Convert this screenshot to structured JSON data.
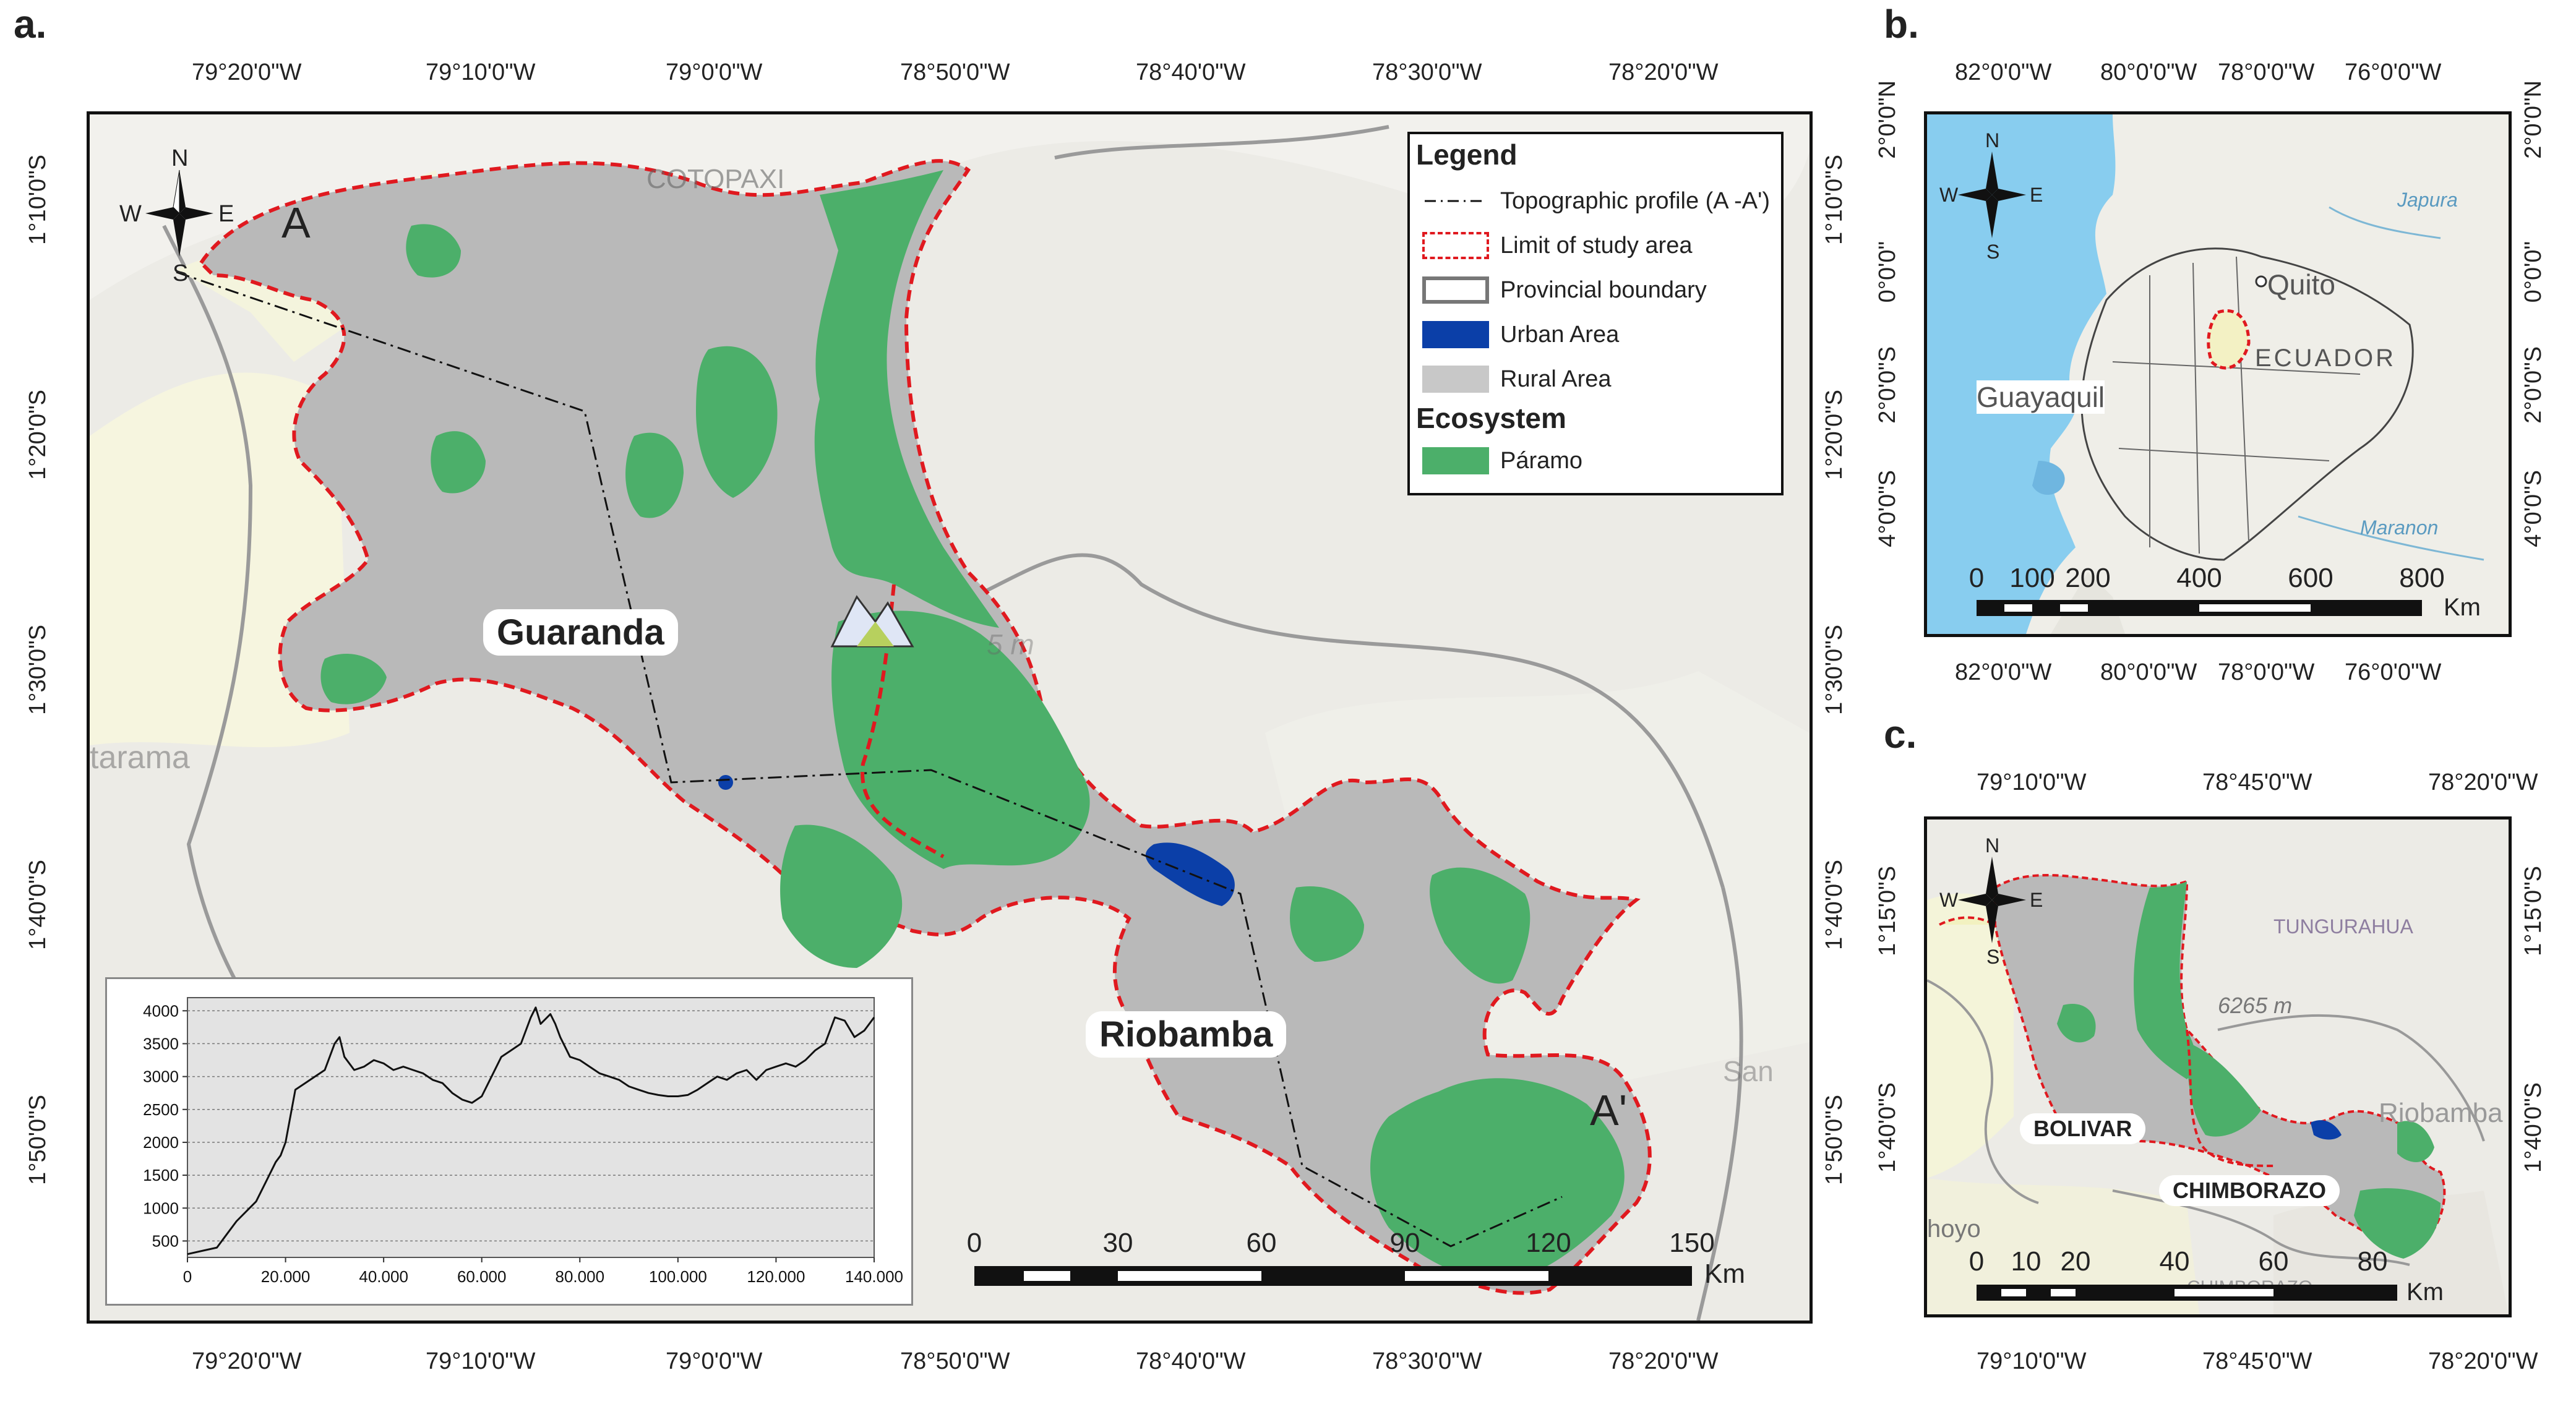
{
  "panel_a": {
    "letter": "a.",
    "top_ticks": [
      "79°20'0\"W",
      "79°10'0\"W",
      "79°0'0\"W",
      "78°50'0\"W",
      "78°40'0\"W",
      "78°30'0\"W",
      "78°20'0\"W"
    ],
    "bottom_ticks": [
      "79°20'0\"W",
      "79°10'0\"W",
      "79°0'0\"W",
      "78°50'0\"W",
      "78°40'0\"W",
      "78°30'0\"W",
      "78°20'0\"W"
    ],
    "left_ticks": [
      "1°10'0\"S",
      "1°20'0\"S",
      "1°30'0\"S",
      "1°40'0\"S",
      "1°50'0\"S"
    ],
    "right_ticks": [
      "1°10'0\"S",
      "1°20'0\"S",
      "1°30'0\"S",
      "1°40'0\"S",
      "1°50'0\"S"
    ],
    "compass": {
      "n": "N",
      "s": "S",
      "e": "E",
      "w": "W"
    },
    "point_a": "A",
    "point_a_prime": "A'",
    "city_guaranda": "Guaranda",
    "city_riobamba": "Riobamba",
    "basemap_labels": {
      "cotopaxi": "COTOPAXI",
      "tarama": "tarama",
      "elevation": "5 m",
      "san": "San"
    },
    "legend": {
      "title": "Legend",
      "items": [
        {
          "label": "Topographic profile (A -A')",
          "icon": "dash-dot-line"
        },
        {
          "label": "Limit of study area",
          "icon": "red-dashed-box"
        },
        {
          "label": "Provincial boundary",
          "icon": "grey-outline-box"
        },
        {
          "label": "Urban Area",
          "icon": "blue-fill",
          "color": "#0b3fa8"
        },
        {
          "label": "Rural Area",
          "icon": "grey-fill",
          "color": "#c8c8c8"
        }
      ],
      "ecosystem_title": "Ecosystem",
      "ecosystem_items": [
        {
          "label": "Páramo",
          "icon": "green-fill",
          "color": "#4caf6a"
        }
      ]
    },
    "scale": {
      "labels": [
        "0",
        "30",
        "60",
        "90",
        "120",
        "150"
      ],
      "unit": "Km"
    }
  },
  "chart_data": {
    "type": "line",
    "title": "",
    "xlabel": "",
    "ylabel": "",
    "xlim": [
      0,
      140000
    ],
    "ylim": [
      250,
      4200
    ],
    "x_tick_labels": [
      "0",
      "20.000",
      "40.000",
      "60.000",
      "80.000",
      "100.000",
      "120.000",
      "140.000"
    ],
    "y_tick_labels": [
      "500",
      "1000",
      "1500",
      "2000",
      "2500",
      "3000",
      "3500",
      "4000"
    ],
    "x_ticks": [
      0,
      20000,
      40000,
      60000,
      80000,
      100000,
      120000,
      140000
    ],
    "y_ticks": [
      500,
      1000,
      1500,
      2000,
      2500,
      3000,
      3500,
      4000
    ],
    "grid": true,
    "series": [
      {
        "x": [
          0,
          3000,
          6000,
          8000,
          10000,
          12000,
          14000,
          16000,
          18000,
          19000,
          20000,
          22000,
          24000,
          26000,
          28000,
          30000,
          31000,
          32000,
          34000,
          36000,
          38000,
          40000,
          42000,
          44000,
          46000,
          48000,
          50000,
          52000,
          54000,
          56000,
          58000,
          60000,
          62000,
          64000,
          66000,
          68000,
          70000,
          71000,
          72000,
          74000,
          75000,
          76000,
          78000,
          80000,
          82000,
          84000,
          86000,
          88000,
          90000,
          92000,
          94000,
          96000,
          98000,
          100000,
          102000,
          104000,
          106000,
          108000,
          110000,
          112000,
          114000,
          116000,
          118000,
          120000,
          122000,
          124000,
          126000,
          128000,
          130000,
          132000,
          134000,
          136000,
          138000,
          140000
        ],
        "y": [
          300,
          350,
          400,
          600,
          800,
          950,
          1100,
          1400,
          1700,
          1800,
          2000,
          2800,
          2900,
          3000,
          3100,
          3500,
          3600,
          3300,
          3100,
          3150,
          3250,
          3200,
          3100,
          3150,
          3100,
          3050,
          2950,
          2900,
          2750,
          2650,
          2600,
          2700,
          3000,
          3300,
          3400,
          3500,
          3900,
          4050,
          3800,
          3950,
          3800,
          3600,
          3300,
          3250,
          3150,
          3050,
          3000,
          2950,
          2850,
          2800,
          2750,
          2720,
          2700,
          2700,
          2720,
          2800,
          2900,
          3000,
          2950,
          3050,
          3100,
          2950,
          3100,
          3150,
          3200,
          3150,
          3250,
          3400,
          3500,
          3900,
          3850,
          3600,
          3700,
          3900
        ]
      }
    ]
  },
  "panel_b": {
    "letter": "b.",
    "top_ticks": [
      "82°0'0\"W",
      "80°0'0\"W",
      "78°0'0\"W",
      "76°0'0\"W"
    ],
    "bottom_ticks": [
      "82°0'0\"W",
      "80°0'0\"W",
      "78°0'0\"W",
      "76°0'0\"W"
    ],
    "left_ticks": [
      "2°0'0\"N",
      "0°0'0\"",
      "2°0'0\"S",
      "4°0'0\"S"
    ],
    "right_ticks": [
      "2°0'0\"N",
      "0°0'0\"",
      "2°0'0\"S",
      "4°0'0\"S"
    ],
    "compass": {
      "n": "N",
      "s": "S",
      "e": "E",
      "w": "W"
    },
    "labels": {
      "quito": "Quito",
      "ecuador": "ECUADOR",
      "guayaquil": "Guayaquil",
      "japura": "Japura",
      "maranon": "Maranon"
    },
    "scale": {
      "labels": [
        "0",
        "100",
        "200",
        "400",
        "600",
        "800"
      ],
      "unit": "Km"
    }
  },
  "panel_c": {
    "letter": "c.",
    "top_ticks": [
      "79°10'0\"W",
      "78°45'0\"W",
      "78°20'0\"W"
    ],
    "bottom_ticks": [
      "79°10'0\"W",
      "78°45'0\"W",
      "78°20'0\"W"
    ],
    "left_ticks": [
      "1°15'0\"S",
      "1°40'0\"S"
    ],
    "right_ticks": [
      "1°15'0\"S",
      "1°40'0\"S"
    ],
    "compass": {
      "n": "N",
      "s": "S",
      "e": "E",
      "w": "W"
    },
    "labels": {
      "tungurahua": "TUNGURAHUA",
      "elevation": "6265 m",
      "riobamba": "Riobamba",
      "hoyo": "hoyo",
      "chimborazo_base": "CHIMBORAZO"
    },
    "bolivar": "BOLIVAR",
    "chimborazo": "CHIMBORAZO",
    "scale": {
      "labels": [
        "0",
        "10",
        "20",
        "40",
        "60",
        "80"
      ],
      "unit": "Km"
    }
  },
  "colors": {
    "paramo": "#4caf6a",
    "rural": "#b9b9b9",
    "urban": "#0b3fa8",
    "study_limit": "#e0191f",
    "province": "#9a9a9a",
    "ocean": "#8fd0f0",
    "land": "#efeee8"
  }
}
